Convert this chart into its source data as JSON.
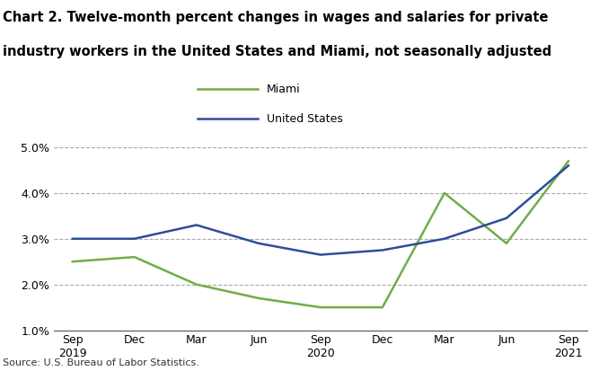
{
  "title_line1": "Chart 2. Twelve-month percent changes in wages and salaries for private",
  "title_line2": "industry workers in the United States and Miami, not seasonally adjusted",
  "x_labels": [
    "Sep\n2019",
    "Dec",
    "Mar",
    "Jun",
    "Sep\n2020",
    "Dec",
    "Mar",
    "Jun",
    "Sep\n2021"
  ],
  "x_positions": [
    0,
    1,
    2,
    3,
    4,
    5,
    6,
    7,
    8
  ],
  "miami_values": [
    2.5,
    2.6,
    2.0,
    1.7,
    1.5,
    1.5,
    4.0,
    2.9,
    4.7
  ],
  "us_values": [
    3.0,
    3.0,
    3.3,
    2.9,
    2.65,
    2.75,
    3.0,
    3.45,
    4.6
  ],
  "miami_color": "#70ad47",
  "us_color": "#2e4d9b",
  "ylim": [
    1.0,
    5.3
  ],
  "yticks": [
    1.0,
    2.0,
    3.0,
    4.0,
    5.0
  ],
  "ytick_labels": [
    "1.0%",
    "2.0%",
    "3.0%",
    "4.0%",
    "5.0%"
  ],
  "legend_miami": "Miami",
  "legend_us": "United States",
  "source": "Source: U.S. Bureau of Labor Statistics.",
  "line_width": 1.8,
  "background_color": "#ffffff",
  "grid_color": "#aaaaaa"
}
